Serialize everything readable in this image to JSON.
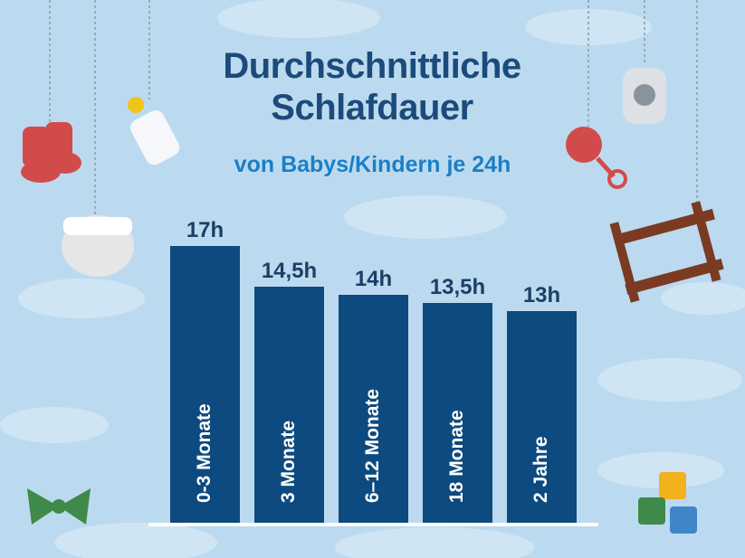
{
  "chart_data": {
    "type": "bar",
    "title": "Durchschnittliche Schlafdauer",
    "subtitle": "von Babys/Kindern je 24h",
    "categories": [
      "0-3 Monate",
      "3 Monate",
      "6–12 Monate",
      "18 Monate",
      "2 Jahre"
    ],
    "values": [
      17,
      14.5,
      14,
      13.5,
      13
    ],
    "value_labels": [
      "17h",
      "14,5h",
      "14h",
      "13,5h",
      "13h"
    ],
    "color": "#0d4a7f"
  }
}
